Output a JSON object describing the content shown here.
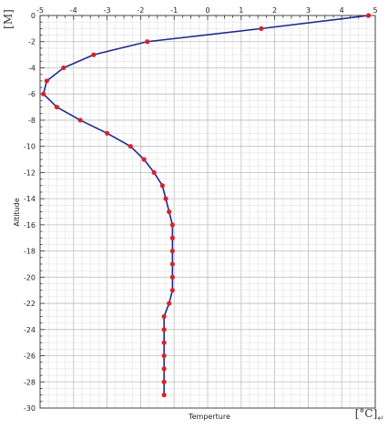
{
  "chart_data": {
    "type": "line",
    "xlabel": "Temperture",
    "ylabel": "Altitude",
    "x_unit": "[°C]",
    "y_unit": "[M]",
    "xlim": [
      -5,
      5
    ],
    "ylim": [
      -30,
      0
    ],
    "x_ticks": [
      -5,
      -4,
      -3,
      -2,
      -1,
      0,
      1,
      2,
      3,
      4,
      5
    ],
    "y_ticks": [
      0,
      -2,
      -4,
      -6,
      -8,
      -10,
      -12,
      -14,
      -16,
      -18,
      -20,
      -22,
      -24,
      -26,
      -28,
      -30
    ],
    "grid": true,
    "line_color": "#1f2a8c",
    "marker_color": "#d8222a",
    "points": [
      {
        "x": 4.8,
        "y": 0
      },
      {
        "x": 1.6,
        "y": -1
      },
      {
        "x": -1.8,
        "y": -2
      },
      {
        "x": -3.4,
        "y": -3
      },
      {
        "x": -4.3,
        "y": -4
      },
      {
        "x": -4.8,
        "y": -5
      },
      {
        "x": -4.9,
        "y": -6
      },
      {
        "x": -4.5,
        "y": -7
      },
      {
        "x": -3.8,
        "y": -8
      },
      {
        "x": -3.0,
        "y": -9
      },
      {
        "x": -2.3,
        "y": -10
      },
      {
        "x": -1.9,
        "y": -11
      },
      {
        "x": -1.6,
        "y": -12
      },
      {
        "x": -1.35,
        "y": -13
      },
      {
        "x": -1.25,
        "y": -14
      },
      {
        "x": -1.15,
        "y": -15
      },
      {
        "x": -1.05,
        "y": -16
      },
      {
        "x": -1.05,
        "y": -17
      },
      {
        "x": -1.05,
        "y": -18
      },
      {
        "x": -1.05,
        "y": -19
      },
      {
        "x": -1.05,
        "y": -20
      },
      {
        "x": -1.05,
        "y": -21
      },
      {
        "x": -1.15,
        "y": -22
      },
      {
        "x": -1.3,
        "y": -23
      },
      {
        "x": -1.3,
        "y": -24
      },
      {
        "x": -1.3,
        "y": -25
      },
      {
        "x": -1.3,
        "y": -26
      },
      {
        "x": -1.3,
        "y": -27
      },
      {
        "x": -1.3,
        "y": -28
      },
      {
        "x": -1.3,
        "y": -29
      }
    ]
  }
}
